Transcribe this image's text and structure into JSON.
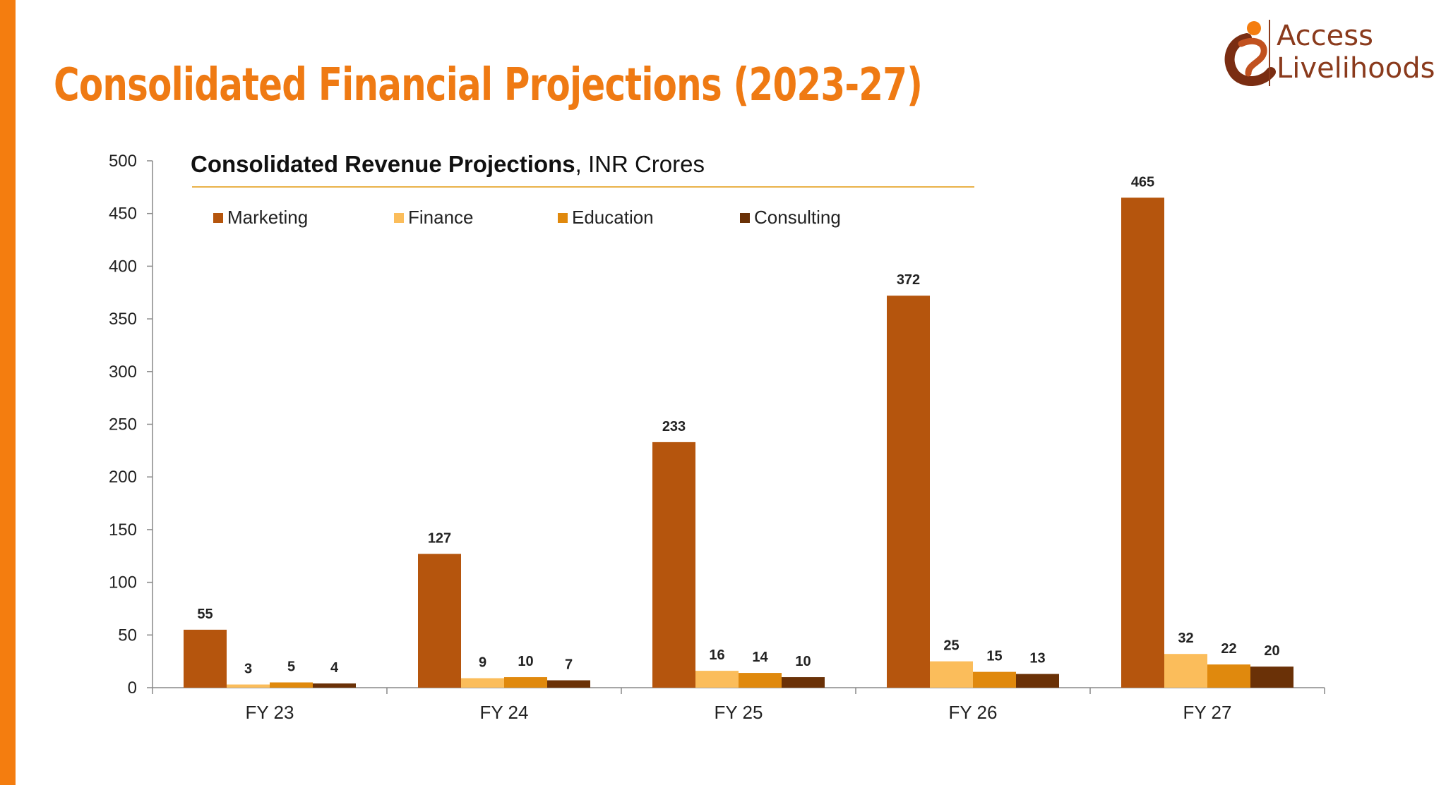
{
  "slide": {
    "title": "Consolidated Financial Projections (2023-27)",
    "accent_color": "#f47d0f"
  },
  "logo": {
    "line1": "Access",
    "line2": "Livelihoods",
    "icon": "access-livelihoods-logo-icon"
  },
  "chart_data": {
    "type": "bar",
    "title": "Consolidated Revenue Projections",
    "title_suffix": ", INR Crores",
    "categories": [
      "FY 23",
      "FY 24",
      "FY 25",
      "FY 26",
      "FY 27"
    ],
    "series": [
      {
        "name": "Marketing",
        "color": "#b5550d",
        "values": [
          55,
          127,
          233,
          372,
          465
        ]
      },
      {
        "name": "Finance",
        "color": "#fbbd5b",
        "values": [
          3,
          9,
          16,
          25,
          32
        ]
      },
      {
        "name": "Education",
        "color": "#e0890d",
        "values": [
          5,
          10,
          14,
          15,
          22
        ]
      },
      {
        "name": "Consulting",
        "color": "#6a3107",
        "values": [
          4,
          7,
          10,
          13,
          20
        ]
      }
    ],
    "y_ticks": [
      "0",
      "50",
      "100",
      "150",
      "200",
      "250",
      "300",
      "350",
      "400",
      "450",
      "500"
    ],
    "ylim": [
      0,
      500
    ],
    "grid": false,
    "legend_position": "top"
  }
}
